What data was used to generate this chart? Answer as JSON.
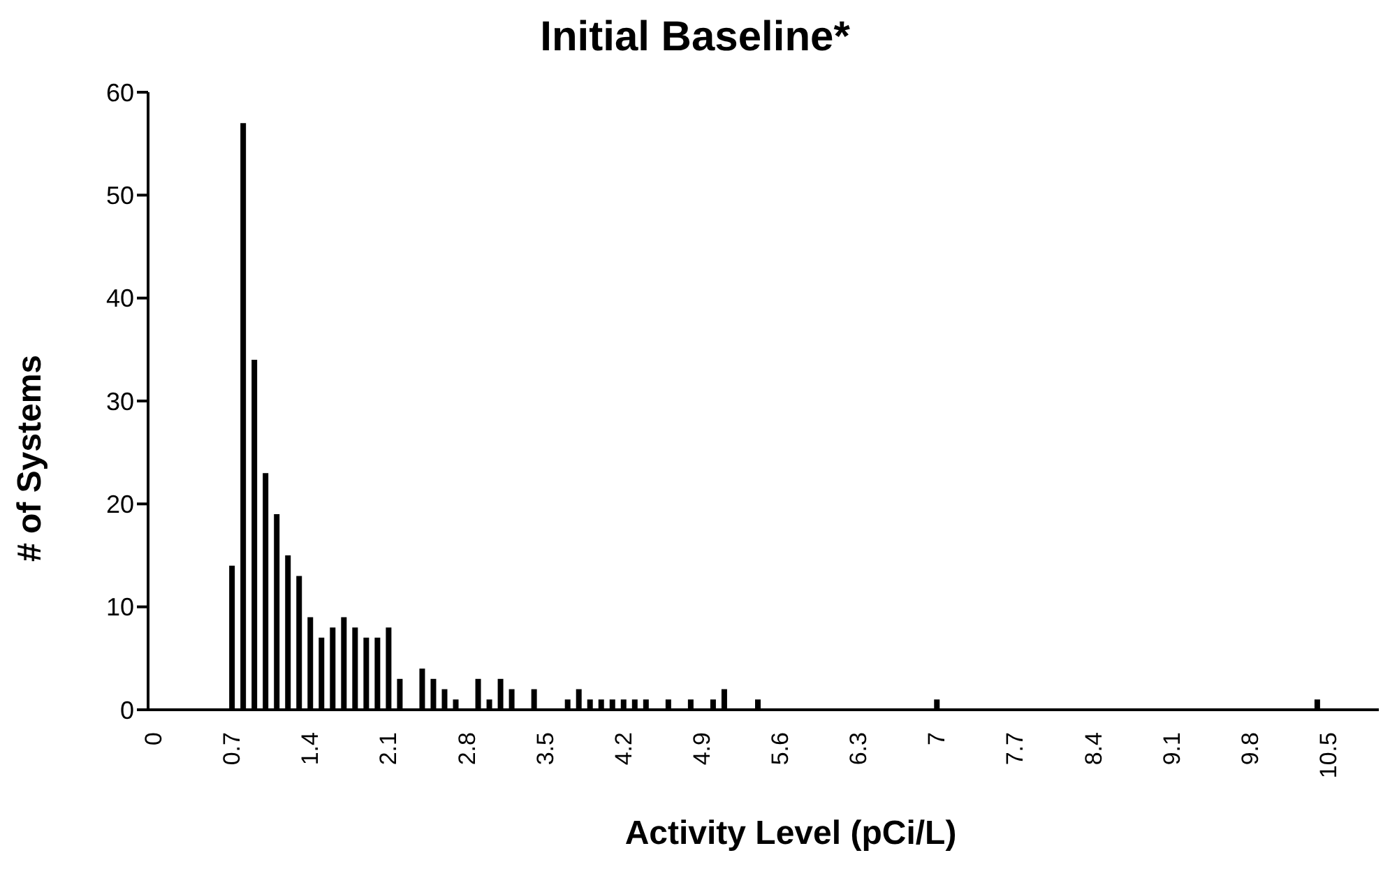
{
  "chart_data": {
    "type": "bar",
    "title": "Initial Baseline*",
    "xlabel": "Activity Level (pCi/L)",
    "ylabel": "# of Systems",
    "categories": [
      "0",
      null,
      null,
      null,
      null,
      null,
      null,
      "0.7",
      null,
      null,
      null,
      null,
      null,
      null,
      "1.4",
      null,
      null,
      null,
      null,
      null,
      null,
      "2.1",
      null,
      null,
      null,
      null,
      null,
      null,
      "2.8",
      null,
      null,
      null,
      null,
      null,
      null,
      "3.5",
      null,
      null,
      null,
      null,
      null,
      null,
      "4.2",
      null,
      null,
      null,
      null,
      null,
      null,
      "4.9",
      null,
      null,
      null,
      null,
      null,
      null,
      "5.6",
      null,
      null,
      null,
      null,
      null,
      null,
      "6.3",
      null,
      null,
      null,
      null,
      null,
      null,
      "7",
      null,
      null,
      null,
      null,
      null,
      null,
      "7.7",
      null,
      null,
      null,
      null,
      null,
      null,
      "8.4",
      null,
      null,
      null,
      null,
      null,
      null,
      "9.1",
      null,
      null,
      null,
      null,
      null,
      null,
      "9.8",
      null,
      null,
      null,
      null,
      null,
      null,
      "10.5",
      null,
      null,
      null,
      null
    ],
    "values": [
      0,
      0,
      0,
      0,
      0,
      0,
      0,
      14,
      57,
      34,
      23,
      19,
      15,
      13,
      9,
      7,
      8,
      9,
      8,
      7,
      7,
      8,
      3,
      0,
      4,
      3,
      2,
      1,
      0,
      3,
      1,
      3,
      2,
      0,
      2,
      0,
      0,
      1,
      2,
      1,
      1,
      1,
      1,
      1,
      1,
      0,
      1,
      0,
      1,
      0,
      1,
      2,
      0,
      0,
      1,
      0,
      0,
      0,
      0,
      0,
      0,
      0,
      0,
      0,
      0,
      0,
      0,
      0,
      0,
      0,
      1,
      0,
      0,
      0,
      0,
      0,
      0,
      0,
      0,
      0,
      0,
      0,
      0,
      0,
      0,
      0,
      0,
      0,
      0,
      0,
      0,
      0,
      0,
      0,
      0,
      0,
      0,
      0,
      0,
      0,
      0,
      0,
      0,
      0,
      1,
      0,
      0,
      0,
      0,
      0
    ],
    "color": "#000000",
    "ylim": [
      0,
      60
    ],
    "yticks": [
      0,
      10,
      20,
      30,
      40,
      50,
      60
    ],
    "grid": false,
    "legend": false
  }
}
